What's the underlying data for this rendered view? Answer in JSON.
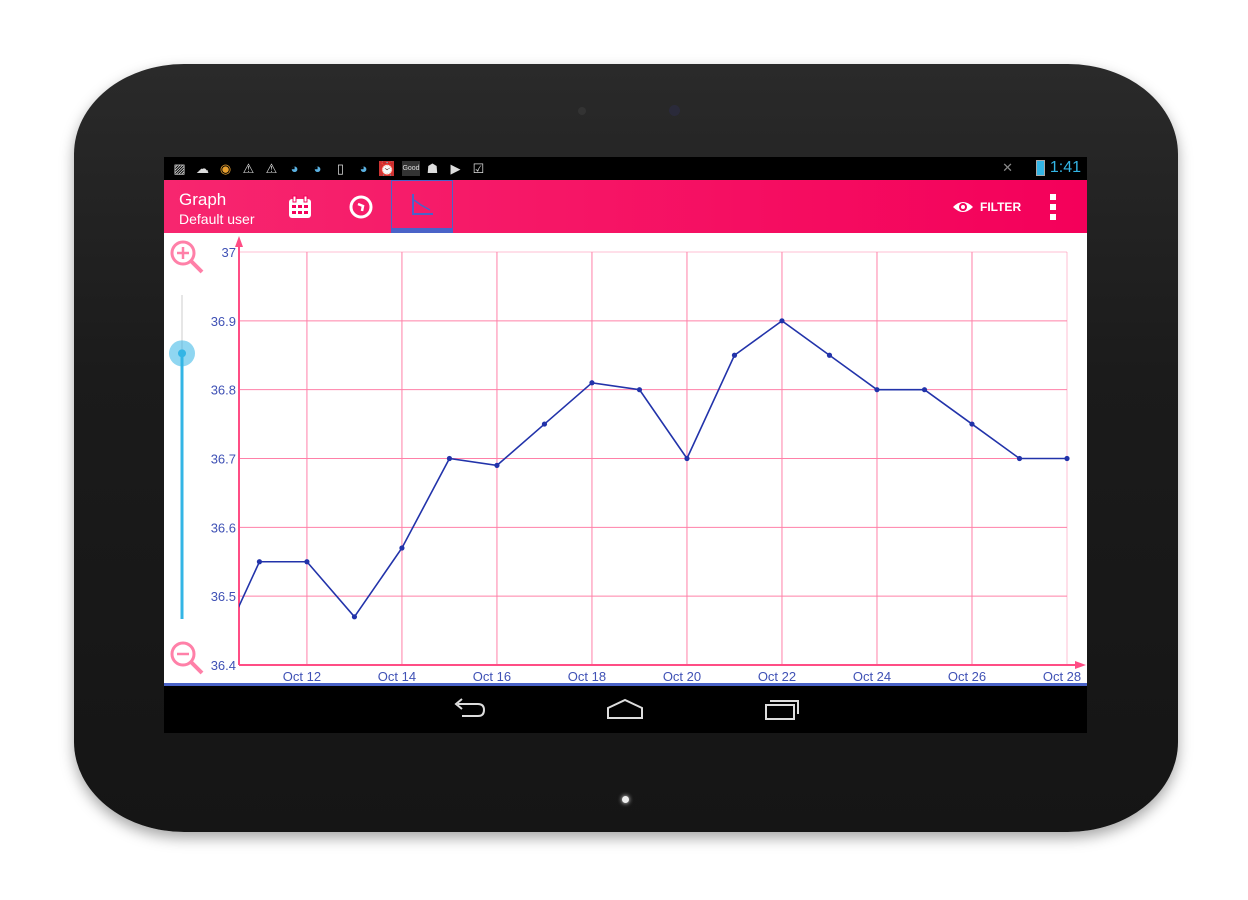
{
  "status_bar": {
    "notification_icons": [
      "image-icon",
      "cloud-upload-icon",
      "app-icon",
      "warning-icon",
      "warning-icon",
      "globe-icon",
      "globe-icon",
      "phone-download-icon",
      "globe-icon",
      "alarm-icon",
      "good-icon",
      "android-icon",
      "play-store-icon",
      "checklist-icon"
    ],
    "good_label": "Good",
    "clock": "1:41",
    "accent_color": "#33b5e5"
  },
  "action_bar": {
    "title": "Graph",
    "subtitle": "Default user",
    "tabs": [
      {
        "icon": "calendar-icon",
        "selected": false
      },
      {
        "icon": "clock-icon",
        "selected": false
      },
      {
        "icon": "graph-icon",
        "selected": true
      }
    ],
    "filter_label": "FILTER",
    "background_color": "#f4005a"
  },
  "zoom_control": {
    "zoom_in_icon": "zoom-in-icon",
    "zoom_out_icon": "zoom-out-icon",
    "slider_level": 0.82
  },
  "chart_data": {
    "type": "line",
    "x": [
      "Oct 10",
      "Oct 11",
      "Oct 12",
      "Oct 13",
      "Oct 14",
      "Oct 15",
      "Oct 16",
      "Oct 17",
      "Oct 18",
      "Oct 19",
      "Oct 20",
      "Oct 21",
      "Oct 22",
      "Oct 23",
      "Oct 24",
      "Oct 25",
      "Oct 26",
      "Oct 27",
      "Oct 28"
    ],
    "values": [
      36.4,
      36.55,
      36.55,
      36.47,
      36.57,
      36.7,
      36.69,
      36.75,
      36.81,
      36.8,
      36.7,
      36.85,
      36.9,
      36.85,
      36.8,
      36.8,
      36.75,
      36.7,
      36.7
    ],
    "xlim_days": [
      10.57,
      28
    ],
    "ylim": [
      36.4,
      37
    ],
    "x_tick_labels": [
      "Oct 12",
      "Oct 14",
      "Oct 16",
      "Oct 18",
      "Oct 20",
      "Oct 22",
      "Oct 24",
      "Oct 26",
      "Oct 28"
    ],
    "y_tick_labels": [
      "36.4",
      "36.5",
      "36.6",
      "36.7",
      "36.8",
      "36.9",
      "37"
    ],
    "grid": true,
    "line_color": "#2233aa",
    "grid_color": "#ff80a8",
    "axis_color": "#ff4d85",
    "label_color": "#3f51b5"
  },
  "nav_bar": {
    "back_icon": "back-icon",
    "home_icon": "home-icon",
    "recents_icon": "recents-icon"
  }
}
